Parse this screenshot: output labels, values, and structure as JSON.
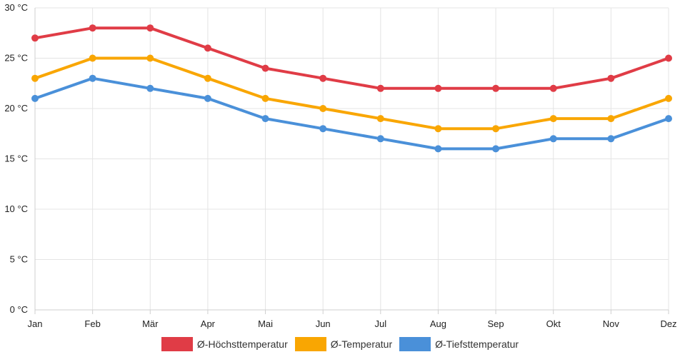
{
  "chart_data": {
    "type": "line",
    "title": "",
    "xlabel": "",
    "ylabel": "",
    "categories": [
      "Jan",
      "Feb",
      "Mär",
      "Apr",
      "Mai",
      "Jun",
      "Jul",
      "Aug",
      "Sep",
      "Okt",
      "Nov",
      "Dez"
    ],
    "ylim": [
      0,
      30
    ],
    "y_ticks": [
      0,
      5,
      10,
      15,
      20,
      25,
      30
    ],
    "y_tick_labels": [
      "0 °C",
      "5 °C",
      "10 °C",
      "15 °C",
      "20 °C",
      "25 °C",
      "30 °C"
    ],
    "grid": true,
    "legend_position": "bottom",
    "series": [
      {
        "name": "Ø-Höchsttemperatur",
        "color": "#e03c46",
        "values": [
          27,
          28,
          28,
          26,
          24,
          23,
          22,
          22,
          22,
          22,
          23,
          25
        ]
      },
      {
        "name": "Ø-Temperatur",
        "color": "#f9a602",
        "values": [
          23,
          25,
          25,
          23,
          21,
          20,
          19,
          18,
          18,
          19,
          19,
          21
        ]
      },
      {
        "name": "Ø-Tiefsttemperatur",
        "color": "#4a90d9",
        "values": [
          21,
          23,
          22,
          21,
          19,
          18,
          17,
          16,
          16,
          17,
          17,
          19
        ]
      }
    ]
  }
}
